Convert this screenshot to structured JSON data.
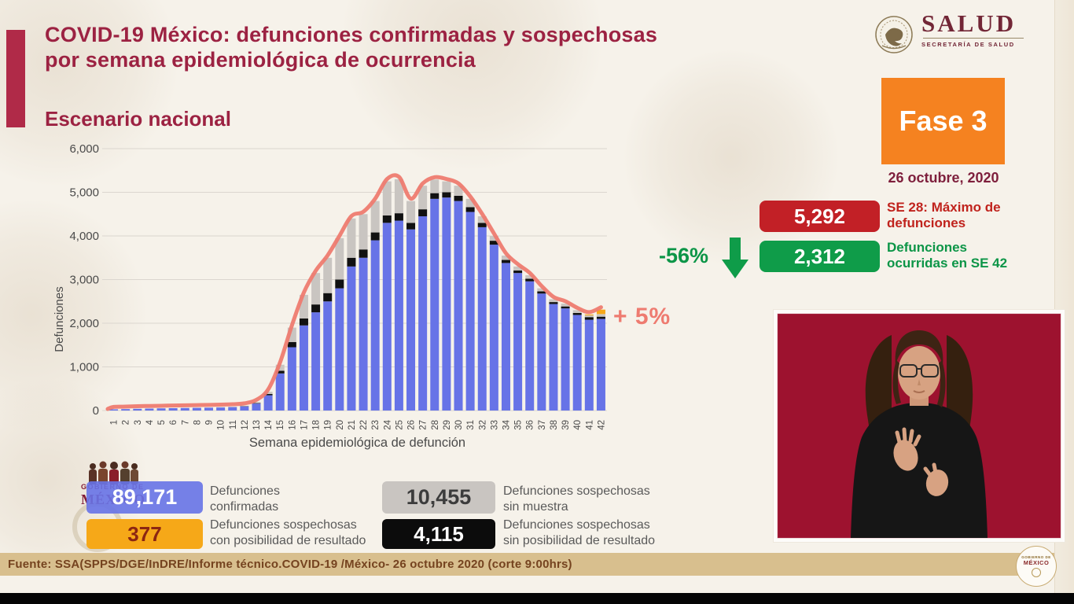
{
  "colors": {
    "brand_maroon": "#9c2242",
    "accent_bar": "#b02a48",
    "fase_orange": "#f58220",
    "badge_red": "#c22026",
    "badge_green": "#0f9c49",
    "line_salmon": "#ee7b70",
    "bar_blue": "#6773e7",
    "bar_gray": "#c9c5c1",
    "bar_black": "#111111",
    "bar_orange": "#f6a818",
    "footer_tan": "#d8bf8e",
    "interpreter_bg": "#9d122f"
  },
  "header": {
    "title_line1": "COVID-19 México: defunciones confirmadas y sospechosas",
    "title_line2": "por semana epidemiológica de ocurrencia",
    "subtitle": "Escenario nacional"
  },
  "salud_logo": {
    "title": "SALUD",
    "subtitle": "SECRETARÍA DE SALUD"
  },
  "phase": {
    "label": "Fase 3",
    "date": "26 octubre, 2020"
  },
  "stats": {
    "max": {
      "value": "5,292",
      "label_line1": "SE 28: Máximo de",
      "label_line2": "defunciones"
    },
    "current": {
      "delta": "-56%",
      "value": "2,312",
      "label_line1": "Defunciones",
      "label_line2": "ocurridas en SE 42"
    }
  },
  "chart_annotation": "+ 5%",
  "chart_data": {
    "type": "bar",
    "stacked": true,
    "xlabel": "Semana epidemiológica de defunción",
    "ylabel": "Defunciones",
    "ylim": [
      0,
      6000
    ],
    "ytick_step": 1000,
    "ytick_labels": [
      "0",
      "1,000",
      "2,000",
      "3,000",
      "4,000",
      "5,000",
      "6,000"
    ],
    "grid": true,
    "categories": [
      "1",
      "2",
      "3",
      "4",
      "5",
      "6",
      "7",
      "8",
      "9",
      "10",
      "11",
      "12",
      "13",
      "14",
      "15",
      "16",
      "17",
      "18",
      "19",
      "20",
      "21",
      "22",
      "23",
      "24",
      "25",
      "26",
      "27",
      "28",
      "29",
      "30",
      "31",
      "32",
      "33",
      "34",
      "35",
      "36",
      "37",
      "38",
      "39",
      "40",
      "41",
      "42"
    ],
    "series": [
      {
        "name": "Defunciones confirmadas",
        "color": "#6773e7",
        "values": [
          28,
          33,
          40,
          45,
          50,
          54,
          58,
          62,
          66,
          70,
          78,
          95,
          160,
          350,
          850,
          1450,
          1950,
          2250,
          2500,
          2800,
          3300,
          3500,
          3900,
          4300,
          4350,
          4150,
          4450,
          4850,
          4880,
          4800,
          4550,
          4200,
          3800,
          3380,
          3150,
          2960,
          2680,
          2440,
          2340,
          2190,
          2080,
          2100
        ]
      },
      {
        "name": "Defunciones sospechosas sin posibilidad de resultado",
        "color": "#111111",
        "values": [
          1,
          1,
          2,
          2,
          2,
          2,
          3,
          3,
          4,
          4,
          5,
          6,
          10,
          30,
          60,
          120,
          160,
          180,
          190,
          200,
          200,
          190,
          180,
          170,
          170,
          150,
          160,
          130,
          120,
          120,
          110,
          100,
          90,
          70,
          60,
          60,
          50,
          45,
          45,
          45,
          60,
          50
        ]
      },
      {
        "name": "Defunciones sospechosas sin muestra",
        "color": "#c9c5c1",
        "values": [
          1,
          1,
          3,
          3,
          3,
          4,
          4,
          5,
          5,
          6,
          7,
          9,
          20,
          50,
          140,
          330,
          540,
          720,
          810,
          950,
          900,
          810,
          720,
          780,
          780,
          500,
          540,
          312,
          250,
          230,
          190,
          150,
          110,
          100,
          90,
          80,
          70,
          65,
          65,
          65,
          40,
          60
        ]
      },
      {
        "name": "Defunciones sospechosas con posibilidad de resultado",
        "color": "#f6a818",
        "values": [
          0,
          0,
          0,
          0,
          0,
          0,
          0,
          0,
          0,
          0,
          0,
          0,
          0,
          0,
          0,
          0,
          0,
          0,
          0,
          0,
          0,
          0,
          0,
          0,
          0,
          0,
          0,
          0,
          0,
          0,
          0,
          0,
          0,
          0,
          0,
          0,
          0,
          0,
          0,
          0,
          20,
          102
        ]
      }
    ],
    "line_overlay": {
      "name": "Total de defunciones (envolvente)",
      "color": "#ee7b70"
    },
    "annotations": [
      {
        "text": "+ 5%",
        "week": 42
      },
      {
        "text": "SE 28 máximo: 5,292",
        "week": 28
      }
    ]
  },
  "legend": {
    "confirmed": {
      "value": "89,171",
      "label_line1": "Defunciones",
      "label_line2": "confirmadas"
    },
    "no_sample": {
      "value": "10,455",
      "label_line1": "Defunciones sospechosas",
      "label_line2": "sin muestra"
    },
    "possible_result": {
      "value": "377",
      "label_line1": "Defunciones sospechosas",
      "label_line2": "con posibilidad de resultado"
    },
    "no_result": {
      "value": "4,115",
      "label_line1": "Defunciones sospechosas",
      "label_line2": "sin posibilidad de resultado"
    }
  },
  "gob_logo": {
    "line1": "GOBIERNO DE",
    "line2": "MÉXICO"
  },
  "footer": {
    "source": "Fuente: SSA(SPPS/DGE/InDRE/Informe técnico.COVID-19 /México- 26 octubre 2020 (corte 9:00hrs)",
    "seal_line1": "GOBIERNO DE",
    "seal_line2": "MÉXICO"
  }
}
